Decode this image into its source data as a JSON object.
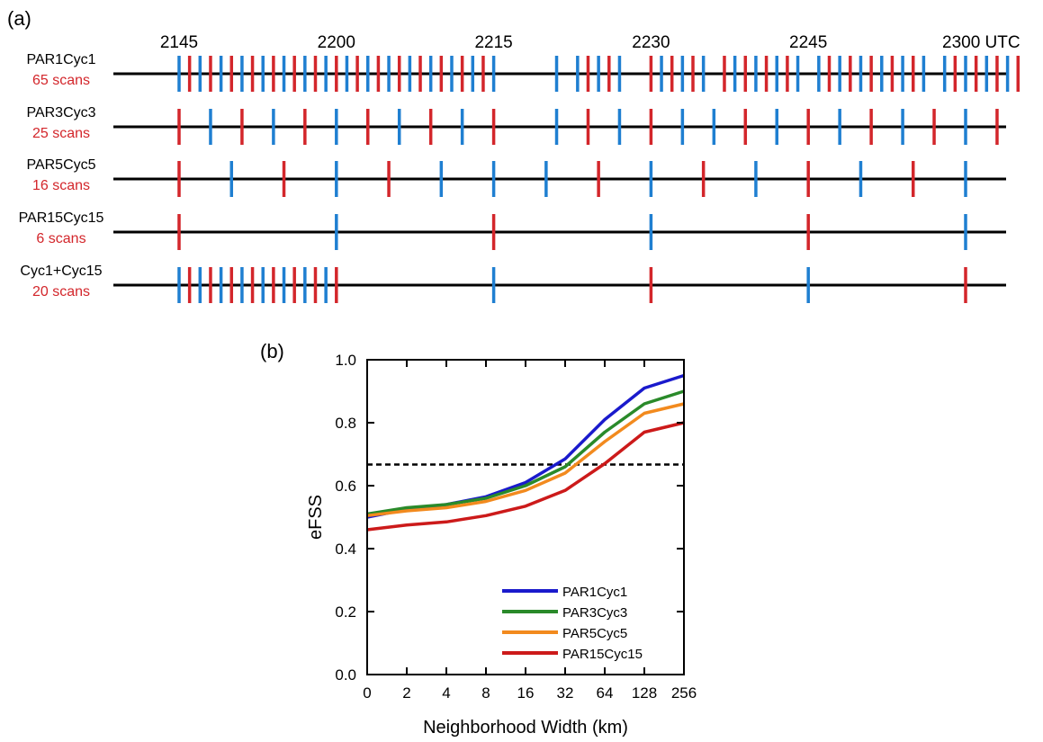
{
  "panel_a": {
    "label": "(a)",
    "time_ticks": [
      "2145",
      "2200",
      "2215",
      "2230",
      "2245",
      "2300 UTC"
    ],
    "colors": {
      "blue": "#1f7fd1",
      "red": "#d3262b",
      "label_red": "#d3262b",
      "line": "#000000"
    },
    "rows": [
      {
        "name": "PAR1Cyc1",
        "scans": "65 scans",
        "marks": [
          {
            "t": 0,
            "c": "blue"
          },
          {
            "t": 1,
            "c": "red"
          },
          {
            "t": 2,
            "c": "blue"
          },
          {
            "t": 3,
            "c": "red"
          },
          {
            "t": 4,
            "c": "blue"
          },
          {
            "t": 5,
            "c": "red"
          },
          {
            "t": 6,
            "c": "blue"
          },
          {
            "t": 7,
            "c": "red"
          },
          {
            "t": 8,
            "c": "blue"
          },
          {
            "t": 9,
            "c": "red"
          },
          {
            "t": 10,
            "c": "blue"
          },
          {
            "t": 11,
            "c": "red"
          },
          {
            "t": 12,
            "c": "blue"
          },
          {
            "t": 13,
            "c": "red"
          },
          {
            "t": 14,
            "c": "blue"
          },
          {
            "t": 15,
            "c": "red"
          },
          {
            "t": 16,
            "c": "blue"
          },
          {
            "t": 17,
            "c": "red"
          },
          {
            "t": 18,
            "c": "blue"
          },
          {
            "t": 19,
            "c": "red"
          },
          {
            "t": 20,
            "c": "blue"
          },
          {
            "t": 21,
            "c": "red"
          },
          {
            "t": 22,
            "c": "blue"
          },
          {
            "t": 23,
            "c": "red"
          },
          {
            "t": 24,
            "c": "blue"
          },
          {
            "t": 25,
            "c": "red"
          },
          {
            "t": 26,
            "c": "blue"
          },
          {
            "t": 27,
            "c": "red"
          },
          {
            "t": 28,
            "c": "blue"
          },
          {
            "t": 29,
            "c": "red"
          },
          {
            "t": 30,
            "c": "blue"
          },
          {
            "t": 36,
            "c": "blue"
          },
          {
            "t": 38,
            "c": "blue"
          },
          {
            "t": 39,
            "c": "red"
          },
          {
            "t": 40,
            "c": "blue"
          },
          {
            "t": 41,
            "c": "red"
          },
          {
            "t": 42,
            "c": "blue"
          },
          {
            "t": 45,
            "c": "red"
          },
          {
            "t": 46,
            "c": "blue"
          },
          {
            "t": 47,
            "c": "red"
          },
          {
            "t": 48,
            "c": "blue"
          },
          {
            "t": 49,
            "c": "red"
          },
          {
            "t": 50,
            "c": "blue"
          },
          {
            "t": 52,
            "c": "red"
          },
          {
            "t": 53,
            "c": "blue"
          },
          {
            "t": 54,
            "c": "red"
          },
          {
            "t": 55,
            "c": "blue"
          },
          {
            "t": 56,
            "c": "red"
          },
          {
            "t": 57,
            "c": "blue"
          },
          {
            "t": 58,
            "c": "red"
          },
          {
            "t": 59,
            "c": "blue"
          },
          {
            "t": 61,
            "c": "blue"
          },
          {
            "t": 62,
            "c": "red"
          },
          {
            "t": 63,
            "c": "blue"
          },
          {
            "t": 64,
            "c": "red"
          },
          {
            "t": 65,
            "c": "blue"
          },
          {
            "t": 66,
            "c": "red"
          },
          {
            "t": 67,
            "c": "blue"
          },
          {
            "t": 68,
            "c": "red"
          },
          {
            "t": 69,
            "c": "blue"
          },
          {
            "t": 70,
            "c": "red"
          },
          {
            "t": 71,
            "c": "blue"
          },
          {
            "t": 73,
            "c": "blue"
          },
          {
            "t": 74,
            "c": "red"
          },
          {
            "t": 75,
            "c": "blue"
          },
          {
            "t": 76,
            "c": "red"
          },
          {
            "t": 77,
            "c": "blue"
          },
          {
            "t": 78,
            "c": "red"
          },
          {
            "t": 79,
            "c": "blue"
          },
          {
            "t": 80,
            "c": "red"
          }
        ]
      },
      {
        "name": "PAR3Cyc3",
        "scans": "25 scans",
        "marks": [
          {
            "t": 0,
            "c": "red"
          },
          {
            "t": 3,
            "c": "blue"
          },
          {
            "t": 6,
            "c": "red"
          },
          {
            "t": 9,
            "c": "blue"
          },
          {
            "t": 12,
            "c": "red"
          },
          {
            "t": 15,
            "c": "blue"
          },
          {
            "t": 18,
            "c": "red"
          },
          {
            "t": 21,
            "c": "blue"
          },
          {
            "t": 24,
            "c": "red"
          },
          {
            "t": 27,
            "c": "blue"
          },
          {
            "t": 30,
            "c": "red"
          },
          {
            "t": 36,
            "c": "blue"
          },
          {
            "t": 39,
            "c": "red"
          },
          {
            "t": 42,
            "c": "blue"
          },
          {
            "t": 45,
            "c": "red"
          },
          {
            "t": 48,
            "c": "blue"
          },
          {
            "t": 51,
            "c": "blue"
          },
          {
            "t": 54,
            "c": "red"
          },
          {
            "t": 57,
            "c": "blue"
          },
          {
            "t": 60,
            "c": "red"
          },
          {
            "t": 63,
            "c": "blue"
          },
          {
            "t": 66,
            "c": "red"
          },
          {
            "t": 69,
            "c": "blue"
          },
          {
            "t": 72,
            "c": "red"
          },
          {
            "t": 75,
            "c": "blue"
          },
          {
            "t": 78,
            "c": "red"
          }
        ]
      },
      {
        "name": "PAR5Cyc5",
        "scans": "16 scans",
        "marks": [
          {
            "t": 0,
            "c": "red"
          },
          {
            "t": 5,
            "c": "blue"
          },
          {
            "t": 10,
            "c": "red"
          },
          {
            "t": 15,
            "c": "blue"
          },
          {
            "t": 20,
            "c": "red"
          },
          {
            "t": 25,
            "c": "blue"
          },
          {
            "t": 30,
            "c": "blue"
          },
          {
            "t": 35,
            "c": "blue"
          },
          {
            "t": 40,
            "c": "red"
          },
          {
            "t": 45,
            "c": "blue"
          },
          {
            "t": 50,
            "c": "red"
          },
          {
            "t": 55,
            "c": "blue"
          },
          {
            "t": 60,
            "c": "red"
          },
          {
            "t": 65,
            "c": "blue"
          },
          {
            "t": 70,
            "c": "red"
          },
          {
            "t": 75,
            "c": "blue"
          }
        ]
      },
      {
        "name": "PAR15Cyc15",
        "scans": "6 scans",
        "marks": [
          {
            "t": 0,
            "c": "red"
          },
          {
            "t": 15,
            "c": "blue"
          },
          {
            "t": 30,
            "c": "red"
          },
          {
            "t": 45,
            "c": "blue"
          },
          {
            "t": 60,
            "c": "red"
          },
          {
            "t": 75,
            "c": "blue"
          }
        ]
      },
      {
        "name": "Cyc1+Cyc15",
        "scans": "20 scans",
        "marks": [
          {
            "t": 0,
            "c": "blue"
          },
          {
            "t": 1,
            "c": "red"
          },
          {
            "t": 2,
            "c": "blue"
          },
          {
            "t": 3,
            "c": "red"
          },
          {
            "t": 4,
            "c": "blue"
          },
          {
            "t": 5,
            "c": "red"
          },
          {
            "t": 6,
            "c": "blue"
          },
          {
            "t": 7,
            "c": "red"
          },
          {
            "t": 8,
            "c": "blue"
          },
          {
            "t": 9,
            "c": "red"
          },
          {
            "t": 10,
            "c": "blue"
          },
          {
            "t": 11,
            "c": "red"
          },
          {
            "t": 12,
            "c": "blue"
          },
          {
            "t": 13,
            "c": "red"
          },
          {
            "t": 14,
            "c": "blue"
          },
          {
            "t": 15,
            "c": "red"
          },
          {
            "t": 30,
            "c": "blue"
          },
          {
            "t": 45,
            "c": "red"
          },
          {
            "t": 60,
            "c": "blue"
          },
          {
            "t": 75,
            "c": "red"
          }
        ]
      }
    ]
  },
  "panel_b": {
    "label": "(b)"
  },
  "chart_data": [
    {
      "type": "timeline",
      "time_range_minutes": [
        0,
        75
      ],
      "tick_minutes": [
        0,
        15,
        30,
        45,
        60,
        75
      ],
      "tick_labels": [
        "2145",
        "2200",
        "2215",
        "2230",
        "2245",
        "2300 UTC"
      ]
    },
    {
      "type": "line",
      "title": "",
      "xlabel": "Neighborhood Width (km)",
      "ylabel": "eFSS",
      "categories": [
        "0",
        "2",
        "4",
        "8",
        "16",
        "32",
        "64",
        "128",
        "256"
      ],
      "ylim": [
        0.0,
        1.0
      ],
      "yticks": [
        "0.0",
        "0.2",
        "0.4",
        "0.6",
        "0.8",
        "1.0"
      ],
      "reference_line": {
        "y": 0.667,
        "style": "dashed",
        "color": "#000000"
      },
      "legend_position": "bottom-right",
      "series": [
        {
          "name": "PAR1Cyc1",
          "color": "#1a1acc",
          "values": [
            0.5,
            0.525,
            0.54,
            0.565,
            0.61,
            0.685,
            0.81,
            0.91,
            0.95
          ]
        },
        {
          "name": "PAR3Cyc3",
          "color": "#2a8a2a",
          "values": [
            0.51,
            0.53,
            0.54,
            0.56,
            0.6,
            0.66,
            0.77,
            0.86,
            0.9
          ]
        },
        {
          "name": "PAR5Cyc5",
          "color": "#f28a1e",
          "values": [
            0.505,
            0.52,
            0.53,
            0.55,
            0.585,
            0.64,
            0.74,
            0.83,
            0.86
          ]
        },
        {
          "name": "PAR15Cyc15",
          "color": "#cc1a1a",
          "values": [
            0.46,
            0.475,
            0.485,
            0.505,
            0.535,
            0.585,
            0.67,
            0.77,
            0.8
          ]
        }
      ]
    }
  ]
}
